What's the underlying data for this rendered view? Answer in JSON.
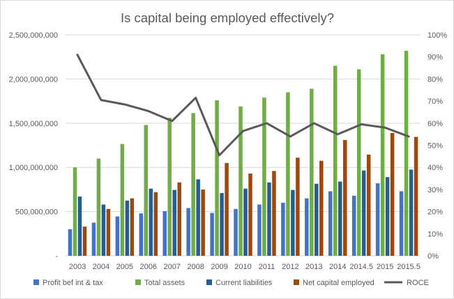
{
  "chart_data": {
    "type": "bar",
    "title": "Is capital being employed effectively?",
    "categories": [
      "2003",
      "2004",
      "2005",
      "2006",
      "2007",
      "2008",
      "2009",
      "2010",
      "2011",
      "2012",
      "2013",
      "2014",
      "2014.5",
      "2015",
      "2015.5"
    ],
    "y_axis_left": {
      "min": 0,
      "max": 2500000000,
      "step": 500000000,
      "tick_labels": [
        "-",
        "500,000,000",
        "1,000,000,000",
        "1,500,000,000",
        "2,000,000,000",
        "2,500,000,000"
      ]
    },
    "y_axis_right": {
      "min": 0,
      "max": 1.0,
      "step": 0.1,
      "tick_labels": [
        "0%",
        "10%",
        "20%",
        "30%",
        "40%",
        "50%",
        "60%",
        "70%",
        "80%",
        "90%",
        "100%"
      ]
    },
    "grid": true,
    "legend_position": "bottom",
    "series": [
      {
        "name": "Profit bef int & tax",
        "type": "bar",
        "axis": "left",
        "color": "#4472C4",
        "values": [
          300000000,
          375000000,
          445000000,
          480000000,
          505000000,
          540000000,
          485000000,
          530000000,
          580000000,
          600000000,
          650000000,
          730000000,
          680000000,
          820000000,
          730000000
        ]
      },
      {
        "name": "Total assets",
        "type": "bar",
        "axis": "left",
        "color": "#70AD47",
        "values": [
          1000000000,
          1100000000,
          1265000000,
          1480000000,
          1560000000,
          1615000000,
          1760000000,
          1690000000,
          1790000000,
          1850000000,
          1890000000,
          2150000000,
          2110000000,
          2280000000,
          2320000000
        ]
      },
      {
        "name": "Current liabilities",
        "type": "bar",
        "axis": "left",
        "color": "#255E91",
        "values": [
          670000000,
          580000000,
          625000000,
          760000000,
          745000000,
          865000000,
          710000000,
          760000000,
          830000000,
          745000000,
          815000000,
          840000000,
          965000000,
          890000000,
          975000000
        ]
      },
      {
        "name": "Net capital employed",
        "type": "bar",
        "axis": "left",
        "color": "#9E480E",
        "values": [
          330000000,
          530000000,
          650000000,
          720000000,
          830000000,
          750000000,
          1050000000,
          930000000,
          960000000,
          1110000000,
          1075000000,
          1310000000,
          1145000000,
          1390000000,
          1345000000
        ]
      },
      {
        "name": "ROCE",
        "type": "line",
        "axis": "right",
        "color": "#595959",
        "values": [
          0.91,
          0.705,
          0.685,
          0.655,
          0.61,
          0.715,
          0.455,
          0.565,
          0.6,
          0.54,
          0.6,
          0.55,
          0.595,
          0.58,
          0.54
        ]
      }
    ]
  }
}
